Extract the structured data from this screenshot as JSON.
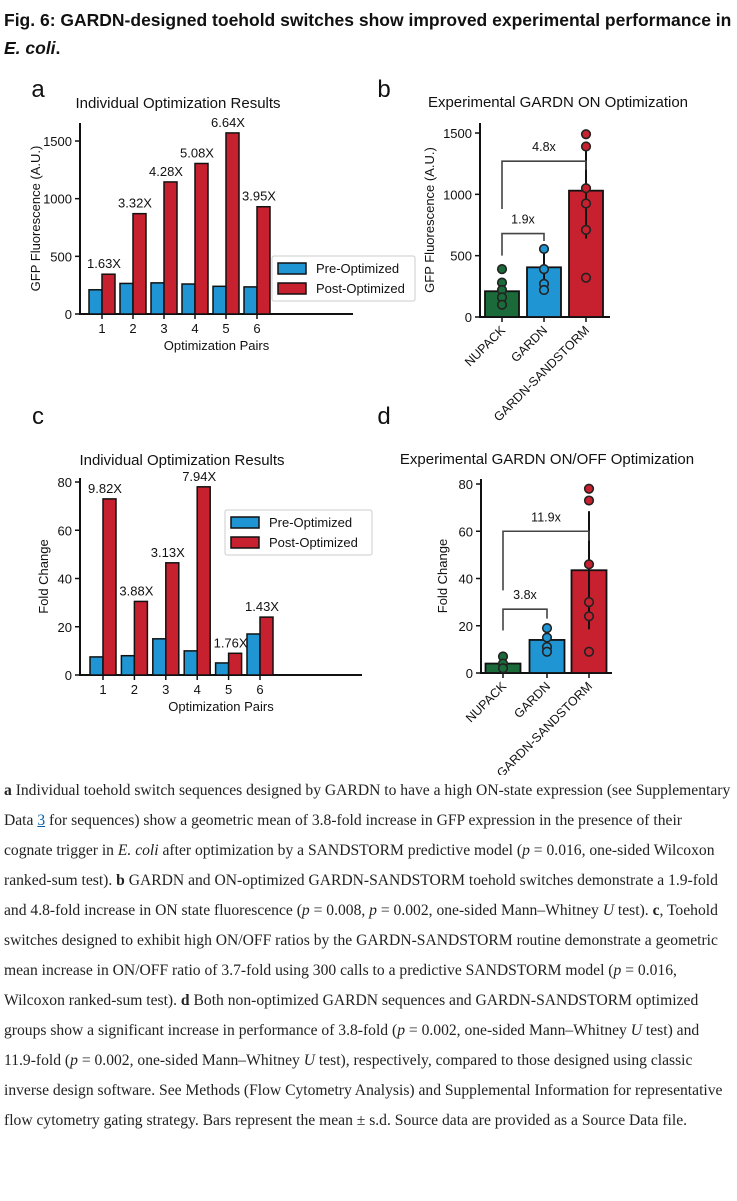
{
  "figure": {
    "title_prefix": "Fig. 6: GARDN-designed toehold switches show improved experimental performance in ",
    "title_italic": "E. coli",
    "title_suffix": ".",
    "panel_labels": [
      "a",
      "b",
      "c",
      "d"
    ]
  },
  "colors": {
    "pre": "#1f96d3",
    "post": "#c7202e",
    "nupack": "#1b6a3a",
    "gardn": "#1f96d3",
    "sandstorm": "#c7202e"
  },
  "chart_data": [
    {
      "panel": "a",
      "type": "bar",
      "title": "Individual Optimization Results",
      "xlabel": "Optimization Pairs",
      "ylabel": "GFP Fluorescence (A.U.)",
      "ylim": [
        0,
        1650
      ],
      "yticks": [
        "0",
        "500",
        "1000",
        "1500"
      ],
      "categories": [
        "1",
        "2",
        "3",
        "4",
        "5",
        "6"
      ],
      "series": [
        {
          "name": "Pre-Optimized",
          "values": [
            210,
            265,
            270,
            260,
            240,
            235
          ]
        },
        {
          "name": "Post-Optimized",
          "values": [
            345,
            870,
            1145,
            1305,
            1570,
            930
          ]
        }
      ],
      "annotations": [
        "1.63X",
        "3.32X",
        "4.28X",
        "5.08X",
        "6.64X",
        "3.95X"
      ],
      "legend": "right"
    },
    {
      "panel": "b",
      "type": "bar",
      "title": "Experimental GARDN ON Optimization",
      "xlabel": "",
      "ylabel": "GFP Fluorescence (A.U.)",
      "ylim": [
        0,
        1600
      ],
      "yticks": [
        "0",
        "500",
        "1000",
        "1500"
      ],
      "categories": [
        "NUPACK",
        "GARDN",
        "GARDN-SANDSTORM"
      ],
      "values": [
        210,
        405,
        1030
      ],
      "sd": [
        100,
        140,
        390
      ],
      "points": [
        [
          390,
          280,
          220,
          160,
          100
        ],
        [
          555,
          390,
          270,
          220
        ],
        [
          1490,
          1390,
          1050,
          925,
          710,
          320
        ]
      ],
      "brackets": [
        {
          "from": 0,
          "to": 1,
          "label": "1.9x",
          "left_low": 500,
          "top": 680,
          "right_low": 620
        },
        {
          "from": 0,
          "to": 2,
          "label": "4.8x",
          "left_low": 880,
          "top": 1270,
          "right_low": 1200
        }
      ]
    },
    {
      "panel": "c",
      "type": "bar",
      "title": "Individual Optimization Results",
      "xlabel": "Optimization Pairs",
      "ylabel": "Fold Change",
      "ylim": [
        0,
        82
      ],
      "yticks": [
        "0",
        "20",
        "40",
        "60",
        "80"
      ],
      "categories": [
        "1",
        "2",
        "3",
        "4",
        "5",
        "6"
      ],
      "series": [
        {
          "name": "Pre-Optimized",
          "values": [
            7.5,
            8,
            15,
            10,
            5,
            17
          ]
        },
        {
          "name": "Post-Optimized",
          "values": [
            73,
            30.5,
            46.5,
            78,
            9,
            24
          ]
        }
      ],
      "annotations": [
        "9.82X",
        "3.88X",
        "3.13X",
        "7.94X",
        "1.76X",
        "1.43X"
      ],
      "legend": "upper-right"
    },
    {
      "panel": "d",
      "type": "bar",
      "title": "Experimental GARDN ON/OFF Optimization",
      "xlabel": "",
      "ylabel": "Fold Change",
      "ylim": [
        0,
        82
      ],
      "yticks": [
        "0",
        "20",
        "40",
        "60",
        "80"
      ],
      "categories": [
        "NUPACK",
        "GARDN",
        "GARDN-SANDSTORM"
      ],
      "values": [
        4,
        14,
        43.5
      ],
      "sd": [
        2,
        4,
        25
      ],
      "points": [
        [
          7,
          4,
          2
        ],
        [
          19,
          15,
          11,
          9
        ],
        [
          78,
          73,
          46,
          30,
          24,
          9
        ]
      ],
      "brackets": [
        {
          "from": 0,
          "to": 1,
          "label": "3.8x",
          "left_low": 18,
          "top": 27,
          "right_low": 23
        },
        {
          "from": 0,
          "to": 2,
          "label": "11.9x",
          "left_low": 35,
          "top": 60,
          "right_low": 56
        }
      ]
    }
  ],
  "caption": [
    [
      "b",
      "a"
    ],
    [
      "",
      " Individual toehold switch sequences designed by GARDN to have a high ON-state expression (see Supplementary Data "
    ],
    [
      "link",
      "3"
    ],
    [
      "",
      " for sequences) show a geometric mean of 3.8-fold increase in GFP expression in the presence of their cognate trigger in "
    ],
    [
      "i",
      "E. coli"
    ],
    [
      "",
      " after optimization by a SANDSTORM predictive model ("
    ],
    [
      "i",
      "p"
    ],
    [
      "",
      " = 0.016, one-sided Wilcoxon ranked-sum test). "
    ],
    [
      "b",
      "b"
    ],
    [
      "",
      " GARDN and ON-optimized GARDN-SANDSTORM toehold switches demonstrate a 1.9-fold and 4.8-fold increase in ON state fluorescence ("
    ],
    [
      "i",
      "p"
    ],
    [
      "",
      " = 0.008, "
    ],
    [
      "i",
      "p"
    ],
    [
      "",
      " = 0.002, one-sided Mann–Whitney "
    ],
    [
      "i",
      "U"
    ],
    [
      "",
      " test). "
    ],
    [
      "b",
      "c"
    ],
    [
      "",
      ", Toehold switches designed to exhibit high ON/OFF ratios by the GARDN-SANDSTORM routine demonstrate a geometric mean increase in ON/OFF ratio of 3.7-fold using 300 calls to a predictive SANDSTORM model ("
    ],
    [
      "i",
      "p"
    ],
    [
      "",
      " = 0.016, Wilcoxon ranked-sum test). "
    ],
    [
      "b",
      "d"
    ],
    [
      "",
      " Both non-optimized GARDN sequences and GARDN-SANDSTORM optimized groups show a significant increase in performance of 3.8-fold ("
    ],
    [
      "i",
      "p"
    ],
    [
      "",
      " = 0.002, one-sided Mann–Whitney "
    ],
    [
      "i",
      "U"
    ],
    [
      "",
      " test) and 11.9-fold ("
    ],
    [
      "i",
      "p"
    ],
    [
      "",
      " = 0.002, one-sided Mann–Whitney "
    ],
    [
      "i",
      "U"
    ],
    [
      "",
      " test), respectively, compared to those designed using classic inverse design software. See Methods (Flow Cytometry Analysis) and Supplemental Information for representative flow cytometry gating strategy. Bars represent the mean ± s.d. Source data are provided as a Source Data file."
    ]
  ]
}
